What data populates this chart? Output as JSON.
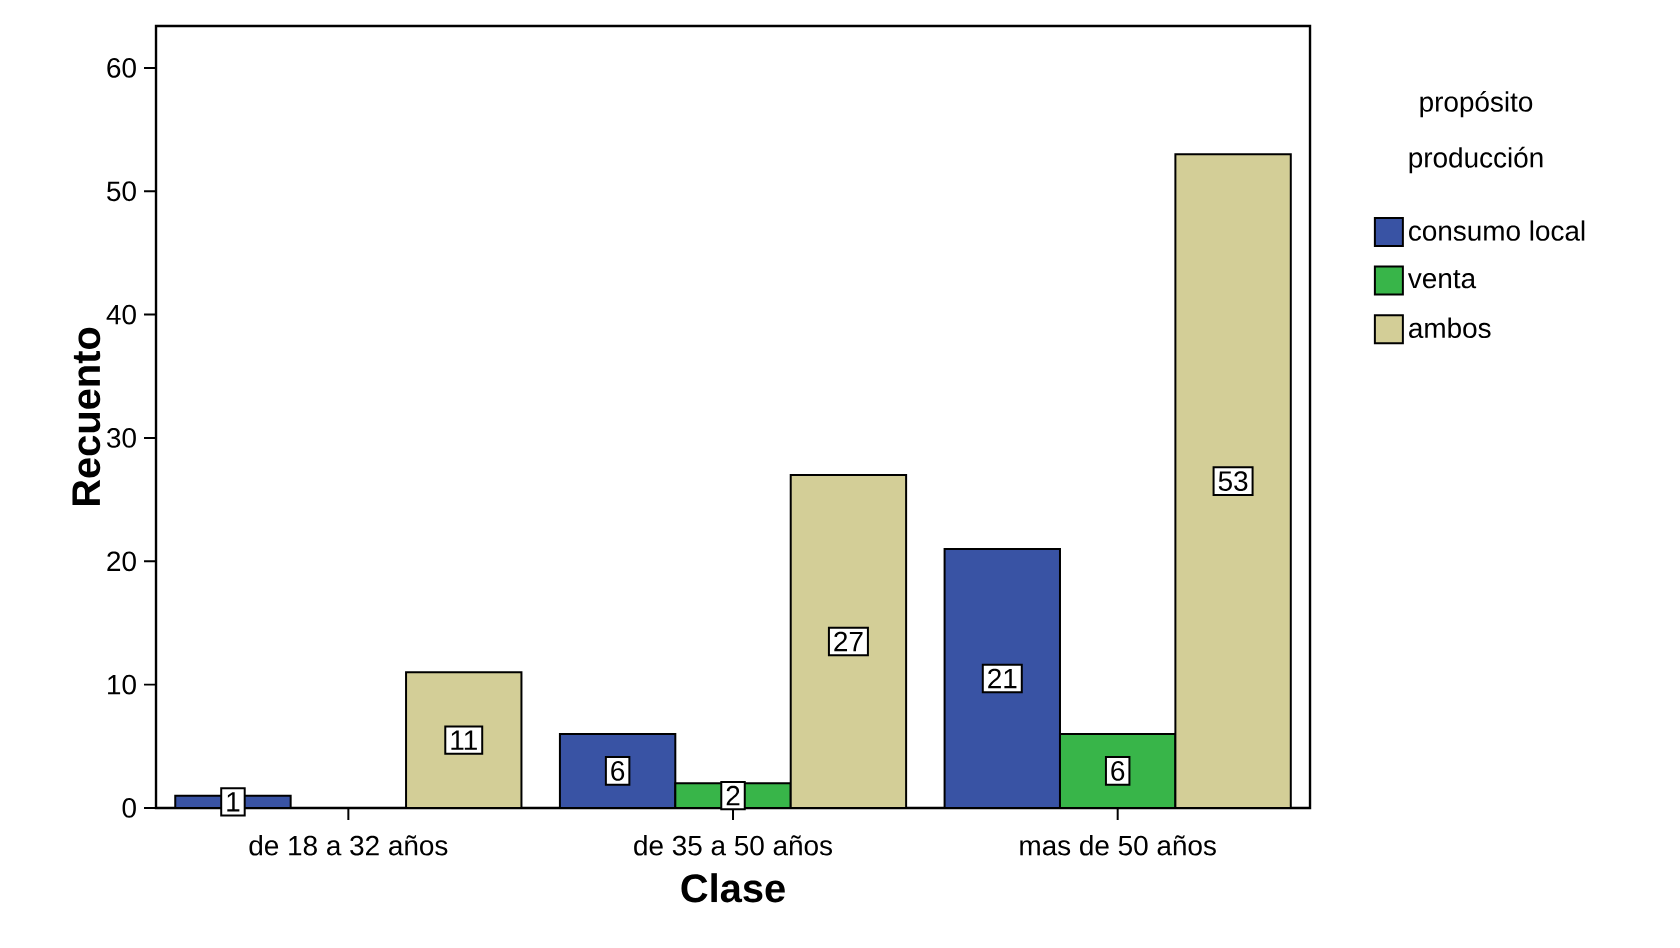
{
  "chart_data": {
    "type": "bar",
    "xlabel": "Clase",
    "ylabel": "Recuento",
    "legend_title": "propósito producción",
    "categories": [
      "de 18 a 32 años",
      "de 35 a 50 años",
      "mas de 50 años"
    ],
    "series": [
      {
        "name": "consumo local",
        "color": "#3953a4",
        "values": [
          1,
          6,
          21
        ],
        "value_labels": [
          "1",
          "6",
          "21"
        ]
      },
      {
        "name": "venta",
        "color": "#38b549",
        "values": [
          0,
          2,
          6
        ],
        "value_labels": [
          null,
          "2",
          "6"
        ]
      },
      {
        "name": "ambos",
        "color": "#d3ce97",
        "values": [
          11,
          27,
          53
        ],
        "value_labels": [
          "11",
          "27",
          "53"
        ]
      }
    ],
    "ylim": [
      0,
      63.4
    ],
    "yticks": [
      0,
      10,
      20,
      30,
      40,
      50,
      60
    ],
    "grid": false,
    "legend": "right"
  }
}
